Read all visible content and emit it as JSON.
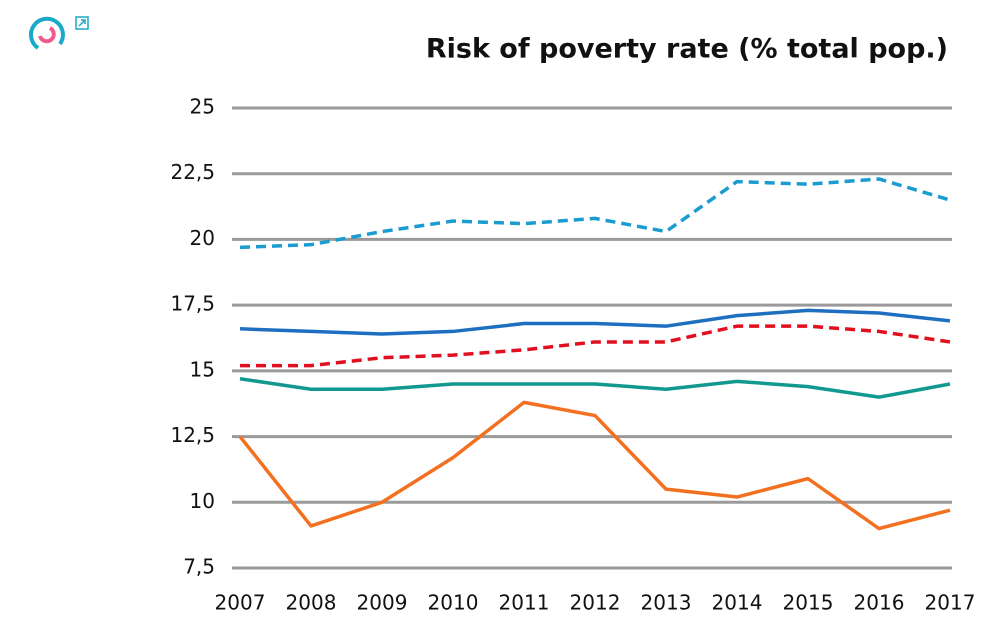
{
  "chart_data": {
    "type": "line",
    "title": "Risk of poverty rate (% total pop.)",
    "x": [
      2007,
      2008,
      2009,
      2010,
      2011,
      2012,
      2013,
      2014,
      2015,
      2016,
      2017
    ],
    "xlim": [
      2007,
      2017
    ],
    "xticks": [
      2007,
      2008,
      2009,
      2010,
      2011,
      2012,
      2013,
      2014,
      2015,
      2016,
      2017
    ],
    "ylim": [
      7.5,
      25
    ],
    "yticks": [
      {
        "value": 7.5,
        "label": "7,5"
      },
      10,
      {
        "value": 12.5,
        "label": "12,5"
      },
      15,
      {
        "value": 17.5,
        "label": "17,5"
      },
      20,
      {
        "value": 22.5,
        "label": "22,5"
      },
      25
    ],
    "grid": true,
    "series": [
      {
        "color": "#1a9cd0",
        "dashed": true,
        "values": [
          19.7,
          19.8,
          20.3,
          20.7,
          20.6,
          20.8,
          20.3,
          22.2,
          22.1,
          22.3,
          21.5
        ]
      },
      {
        "color": "#1f6fc0",
        "dashed": false,
        "values": [
          16.6,
          16.5,
          16.4,
          16.5,
          16.8,
          16.8,
          16.7,
          17.1,
          17.3,
          17.2,
          16.9
        ]
      },
      {
        "color": "#e2101e",
        "dashed": true,
        "values": [
          15.2,
          15.2,
          15.5,
          15.6,
          15.8,
          16.1,
          16.1,
          16.7,
          16.7,
          16.5,
          16.1
        ]
      },
      {
        "color": "#12998f",
        "dashed": false,
        "values": [
          14.7,
          14.3,
          14.3,
          14.5,
          14.5,
          14.5,
          14.3,
          14.6,
          14.4,
          14.0,
          14.5
        ]
      },
      {
        "color": "#f37021",
        "dashed": false,
        "values": [
          12.5,
          9.1,
          10.0,
          11.7,
          13.8,
          13.3,
          10.5,
          10.2,
          10.9,
          9.0,
          9.7
        ]
      }
    ]
  }
}
